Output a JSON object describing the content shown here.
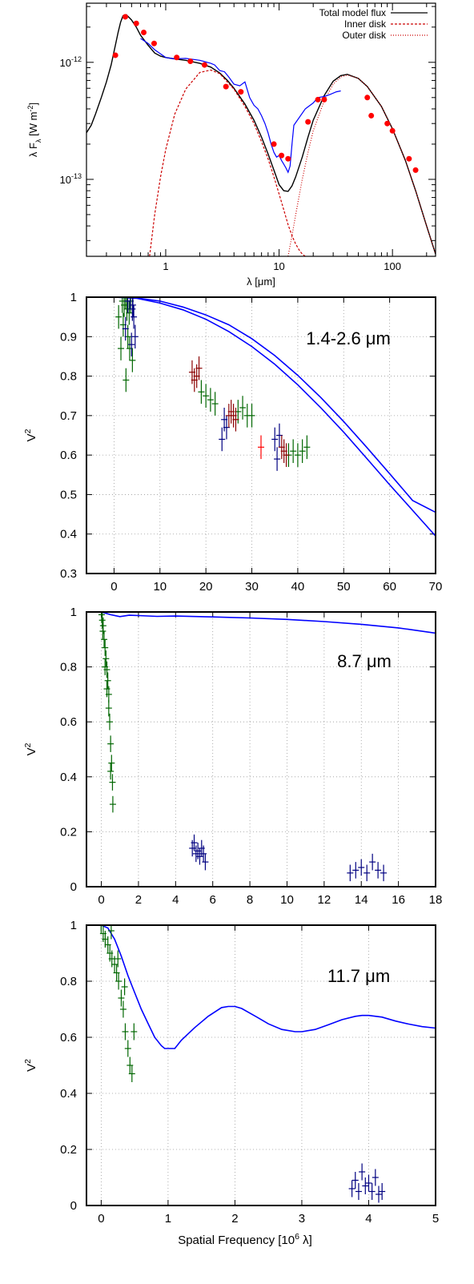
{
  "chart_data": [
    {
      "type": "line",
      "panel": "sed",
      "xlabel": "λ [μm]",
      "ylabel": "λ F_λ [W m^-2]",
      "xscale": "log",
      "yscale": "log",
      "xlim": [
        0.2,
        240
      ],
      "ylim": [
        2.2e-14,
        3.2e-12
      ],
      "x_tick_labels": [
        "1",
        "10",
        "100"
      ],
      "x_tick_values": [
        1,
        10,
        100
      ],
      "y_tick_labels": [
        "10^-12",
        "10^-13"
      ],
      "y_tick_values": [
        1e-12,
        1e-13
      ],
      "grid": false,
      "legend_position": "top-right",
      "series": [
        {
          "name": "Total model flux",
          "style": "solid",
          "color": "#000000",
          "x": [
            0.2,
            0.22,
            0.24,
            0.27,
            0.3,
            0.33,
            0.36,
            0.38,
            0.4,
            0.42,
            0.45,
            0.5,
            0.55,
            0.6,
            0.7,
            0.8,
            0.9,
            1.0,
            1.2,
            1.5,
            2.0,
            2.5,
            3.0,
            3.5,
            4.0,
            5.0,
            6.0,
            7.0,
            8.0,
            9.0,
            10.0,
            11.0,
            12.0,
            13.0,
            14.0,
            16.0,
            18.0,
            20.0,
            25.0,
            30.0,
            35.0,
            40.0,
            50.0,
            60.0,
            80.0,
            100.0,
            130.0,
            160.0,
            200.0,
            240.0
          ],
          "y": [
            2.5e-13,
            2.9e-13,
            3.6e-13,
            5e-13,
            6.8e-13,
            9.5e-13,
            1.4e-12,
            1.8e-12,
            2.2e-12,
            2.5e-12,
            2.55e-12,
            2.3e-12,
            2e-12,
            1.7e-12,
            1.4e-12,
            1.2e-12,
            1.13e-12,
            1.1e-12,
            1.07e-12,
            1.04e-12,
            9.8e-13,
            9.1e-13,
            8.1e-13,
            7e-13,
            6e-13,
            4.4e-13,
            3.2e-13,
            2.3e-13,
            1.65e-13,
            1.2e-13,
            9e-14,
            8e-14,
            7.9e-14,
            8.8e-14,
            1.05e-13,
            1.55e-13,
            2.3e-13,
            3.2e-13,
            5.2e-13,
            6.9e-13,
            7.7e-13,
            7.9e-13,
            7.3e-13,
            6.2e-13,
            4.2e-13,
            2.7e-13,
            1.45e-13,
            8e-14,
            4e-14,
            2.3e-14
          ]
        },
        {
          "name": "Inner disk",
          "style": "dashed",
          "color": "#cc0000",
          "x": [
            0.72,
            0.8,
            0.9,
            1.0,
            1.2,
            1.5,
            2.0,
            2.5,
            3.0,
            4.0,
            5.0,
            6.0,
            7.0,
            8.0,
            9.0,
            10.0,
            11.0,
            12.0,
            13.0,
            14.0,
            15.0,
            16.0,
            17.0
          ],
          "y": [
            2.2e-14,
            5e-14,
            1.05e-13,
            1.8e-13,
            3.6e-13,
            5.9e-13,
            8.2e-13,
            8.6e-13,
            8e-13,
            5.9e-13,
            4.2e-13,
            3e-13,
            2.1e-13,
            1.5e-13,
            1.05e-13,
            7.5e-14,
            5.5e-14,
            4.1e-14,
            3.3e-14,
            2.8e-14,
            2.5e-14,
            2.3e-14,
            2.2e-14
          ]
        },
        {
          "name": "Outer disk",
          "style": "dotted",
          "color": "#cc0000",
          "x": [
            12.0,
            13.0,
            14.0,
            16.0,
            18.0,
            20.0,
            25.0,
            30.0,
            35.0,
            40.0,
            50.0,
            60.0,
            80.0,
            100.0,
            130.0,
            160.0,
            200.0,
            240.0
          ],
          "y": [
            2.2e-14,
            3.3e-14,
            5e-14,
            1e-13,
            1.7e-13,
            2.6e-13,
            4.7e-13,
            6.5e-13,
            7.5e-13,
            7.8e-13,
            7.3e-13,
            6.2e-13,
            4.2e-13,
            2.7e-13,
            1.45e-13,
            8e-14,
            4e-14,
            2.3e-14
          ]
        },
        {
          "name": "",
          "style": "solid",
          "color": "#0000ff",
          "x": [
            0.6,
            0.7,
            0.8,
            0.9,
            1.0,
            1.2,
            1.5,
            2.0,
            2.5,
            2.7,
            3.0,
            3.3,
            3.6,
            4.0,
            4.5,
            5.0,
            5.5,
            6.0,
            6.5,
            7.0,
            7.5,
            8.0,
            8.5,
            9.0,
            9.5,
            10.0,
            10.5,
            11.0,
            11.5,
            12.0,
            12.5,
            13.0,
            13.5,
            17.0,
            20.0,
            22.0,
            25.0,
            28.0,
            32.0,
            35.0
          ],
          "y": [
            1.6e-12,
            1.45e-12,
            1.28e-12,
            1.18e-12,
            1.1e-12,
            1.07e-12,
            1.08e-12,
            1.04e-12,
            9.8e-13,
            9.5e-13,
            8.5e-13,
            8.3e-13,
            7.5e-13,
            6.5e-13,
            6.3e-13,
            6.8e-13,
            5e-13,
            4.3e-13,
            4e-13,
            3.5e-13,
            3e-13,
            2.5e-13,
            2e-13,
            1.7e-13,
            1.55e-13,
            1.6e-13,
            1.45e-13,
            1.35e-13,
            1.25e-13,
            1.15e-13,
            1.3e-13,
            2e-13,
            2.9e-13,
            4e-13,
            4.5e-13,
            5e-13,
            5.1e-13,
            5.3e-13,
            5.6e-13,
            5.7e-13
          ]
        },
        {
          "name": "",
          "type": "scatter",
          "color": "#ff0000",
          "x": [
            0.36,
            0.44,
            0.55,
            0.64,
            0.79,
            1.25,
            1.65,
            2.2,
            3.4,
            4.6,
            9.0,
            10.5,
            12.0,
            18.0,
            22.0,
            25.0,
            60.0,
            65.0,
            90.0,
            100.0,
            140.0,
            160.0
          ],
          "y": [
            1.15e-12,
            2.45e-12,
            2.15e-12,
            1.8e-12,
            1.45e-12,
            1.1e-12,
            1.02e-12,
            9.5e-13,
            6.2e-13,
            5.6e-13,
            2e-13,
            1.6e-13,
            1.5e-13,
            3.1e-13,
            4.8e-13,
            4.8e-13,
            5e-13,
            3.5e-13,
            3e-13,
            2.6e-13,
            1.5e-13,
            1.2e-13
          ]
        }
      ]
    },
    {
      "type": "scatter",
      "panel": "v2-nir",
      "xlabel": "",
      "ylabel": "V^2",
      "annotation": "1.4-2.6 μm",
      "xlim": [
        -6,
        70
      ],
      "ylim": [
        0.3,
        1.0
      ],
      "x_tick_values": [
        0,
        10,
        20,
        30,
        40,
        50,
        60,
        70
      ],
      "x_tick_labels": [
        "0",
        "10",
        "20",
        "30",
        "40",
        "50",
        "60",
        "70"
      ],
      "y_tick_values": [
        0.3,
        0.4,
        0.5,
        0.6,
        0.7,
        0.8,
        0.9,
        1.0
      ],
      "y_tick_labels": [
        "0.3",
        "0.4",
        "0.5",
        "0.6",
        "0.7",
        "0.8",
        "0.9",
        "1"
      ],
      "grid": true,
      "series": [
        {
          "name": "",
          "type": "line",
          "color": "#0000ff",
          "x": [
            0,
            5,
            10,
            15,
            20,
            25,
            30,
            35,
            40,
            45,
            50,
            55,
            60,
            65,
            70
          ],
          "y": [
            1.0,
            0.998,
            0.99,
            0.975,
            0.955,
            0.93,
            0.895,
            0.852,
            0.802,
            0.746,
            0.685,
            0.62,
            0.553,
            0.485,
            0.455
          ]
        },
        {
          "name": "",
          "type": "line",
          "color": "#0000ff",
          "x": [
            0,
            5,
            10,
            15,
            20,
            25,
            30,
            35,
            40,
            45,
            50,
            55,
            60,
            65,
            70
          ],
          "y": [
            1.0,
            0.997,
            0.985,
            0.968,
            0.944,
            0.913,
            0.875,
            0.83,
            0.778,
            0.72,
            0.658,
            0.592,
            0.525,
            0.46,
            0.395
          ]
        },
        {
          "name": "",
          "type": "scatter",
          "color": "#006600",
          "x": [
            1.0,
            1.5,
            2.0,
            2.2,
            2.5,
            2.8,
            3.0,
            3.3,
            3.6,
            4.0,
            1.8,
            2.6,
            3.4,
            19.0,
            20.0,
            21.0,
            22.0,
            27.0,
            28.0,
            29.0,
            30.0,
            38.0,
            39.0,
            40.0,
            41.0,
            42.0
          ],
          "y": [
            0.95,
            0.87,
            0.93,
            0.98,
            1.0,
            0.97,
            0.9,
            0.96,
            0.99,
            0.84,
            0.99,
            0.79,
            0.87,
            0.76,
            0.75,
            0.74,
            0.73,
            0.71,
            0.72,
            0.7,
            0.7,
            0.6,
            0.61,
            0.6,
            0.61,
            0.62
          ]
        },
        {
          "name": "",
          "type": "scatter",
          "color": "#000080",
          "x": [
            2.5,
            3.0,
            3.5,
            4.0,
            4.3,
            4.6,
            3.8,
            4.1,
            23.5,
            24.0,
            24.5,
            35.0,
            35.5,
            36.0
          ],
          "y": [
            0.92,
            0.99,
            1.0,
            0.97,
            0.95,
            0.9,
            0.88,
            0.98,
            0.64,
            0.69,
            0.67,
            0.64,
            0.59,
            0.65
          ]
        },
        {
          "name": "",
          "type": "scatter",
          "color": "#8b0000",
          "x": [
            17.0,
            17.5,
            18.0,
            18.5,
            25.0,
            25.5,
            26.0,
            26.5,
            36.5,
            37.0,
            37.5
          ],
          "y": [
            0.81,
            0.79,
            0.8,
            0.82,
            0.7,
            0.71,
            0.7,
            0.69,
            0.62,
            0.61,
            0.6
          ]
        },
        {
          "name": "",
          "type": "scatter",
          "color": "#ff0000",
          "x": [
            32.0
          ],
          "y": [
            0.62
          ]
        }
      ]
    },
    {
      "type": "scatter",
      "panel": "v2-8.7",
      "xlabel": "",
      "ylabel": "V^2",
      "annotation": "8.7 μm",
      "xlim": [
        -0.8,
        18
      ],
      "ylim": [
        0,
        1.0
      ],
      "x_tick_values": [
        0,
        2,
        4,
        6,
        8,
        10,
        12,
        14,
        16,
        18
      ],
      "x_tick_labels": [
        "0",
        "2",
        "4",
        "6",
        "8",
        "10",
        "12",
        "14",
        "16",
        "18"
      ],
      "y_tick_values": [
        0,
        0.2,
        0.4,
        0.6,
        0.8,
        1.0
      ],
      "y_tick_labels": [
        "0",
        "0.2",
        "0.4",
        "0.6",
        "0.8",
        "1"
      ],
      "grid": true,
      "series": [
        {
          "name": "",
          "type": "line",
          "color": "#0000ff",
          "x": [
            0,
            0.5,
            1,
            1.5,
            2,
            3,
            4,
            6,
            8,
            10,
            12,
            14,
            16,
            18
          ],
          "y": [
            1.0,
            0.99,
            0.983,
            0.988,
            0.987,
            0.984,
            0.985,
            0.982,
            0.978,
            0.973,
            0.965,
            0.955,
            0.942,
            0.923
          ]
        },
        {
          "name": "",
          "type": "scatter",
          "color": "#006600",
          "x": [
            0.02,
            0.05,
            0.08,
            0.1,
            0.15,
            0.2,
            0.25,
            0.3,
            0.35,
            0.4,
            0.45,
            0.5,
            0.55,
            0.6,
            0.62,
            0.2,
            0.3,
            0.4,
            0.5
          ],
          "y": [
            0.99,
            0.97,
            0.93,
            0.95,
            0.9,
            0.87,
            0.83,
            0.79,
            0.75,
            0.7,
            0.6,
            0.52,
            0.45,
            0.38,
            0.3,
            0.8,
            0.72,
            0.65,
            0.42
          ]
        },
        {
          "name": "",
          "type": "scatter",
          "color": "#000080",
          "x": [
            4.9,
            5.0,
            5.1,
            5.2,
            5.3,
            5.4,
            5.5,
            5.6,
            13.4,
            13.7,
            14.0,
            14.3,
            14.6,
            14.9,
            15.2
          ],
          "y": [
            0.14,
            0.16,
            0.12,
            0.13,
            0.11,
            0.14,
            0.12,
            0.09,
            0.05,
            0.06,
            0.07,
            0.05,
            0.09,
            0.06,
            0.05
          ]
        }
      ]
    },
    {
      "type": "scatter",
      "panel": "v2-11.7",
      "xlabel": "Spatial Frequency [10^6 λ]",
      "ylabel": "V^2",
      "annotation": "11.7 μm",
      "xlim": [
        -0.22,
        5
      ],
      "ylim": [
        0,
        1.0
      ],
      "x_tick_values": [
        0,
        1,
        2,
        3,
        4,
        5
      ],
      "x_tick_labels": [
        "0",
        "1",
        "2",
        "3",
        "4",
        "5"
      ],
      "y_tick_values": [
        0,
        0.2,
        0.4,
        0.6,
        0.8,
        1.0
      ],
      "y_tick_labels": [
        "0",
        "0.2",
        "0.4",
        "0.6",
        "0.8",
        "1"
      ],
      "grid": true,
      "series": [
        {
          "name": "",
          "type": "line",
          "color": "#0000ff",
          "x": [
            0,
            0.1,
            0.2,
            0.3,
            0.4,
            0.5,
            0.6,
            0.7,
            0.8,
            0.9,
            0.95,
            1.0,
            1.1,
            1.2,
            1.4,
            1.6,
            1.8,
            1.9,
            2.0,
            2.1,
            2.3,
            2.5,
            2.7,
            2.9,
            3.0,
            3.2,
            3.4,
            3.6,
            3.8,
            3.9,
            4.0,
            4.2,
            4.4,
            4.6,
            4.8,
            5.0
          ],
          "y": [
            1.0,
            0.99,
            0.95,
            0.89,
            0.82,
            0.76,
            0.7,
            0.65,
            0.6,
            0.57,
            0.56,
            0.56,
            0.56,
            0.59,
            0.635,
            0.675,
            0.706,
            0.71,
            0.71,
            0.703,
            0.676,
            0.648,
            0.628,
            0.62,
            0.62,
            0.628,
            0.645,
            0.663,
            0.675,
            0.678,
            0.678,
            0.672,
            0.658,
            0.647,
            0.638,
            0.633
          ]
        },
        {
          "name": "",
          "type": "scatter",
          "color": "#006600",
          "x": [
            0.0,
            0.03,
            0.06,
            0.1,
            0.13,
            0.16,
            0.2,
            0.23,
            0.26,
            0.3,
            0.33,
            0.36,
            0.4,
            0.43,
            0.46,
            0.49,
            0.15,
            0.25,
            0.35
          ],
          "y": [
            1.0,
            0.97,
            0.95,
            0.93,
            0.9,
            0.88,
            0.86,
            0.83,
            0.8,
            0.74,
            0.7,
            0.62,
            0.56,
            0.5,
            0.47,
            0.62,
            0.98,
            0.88,
            0.78
          ]
        },
        {
          "name": "",
          "type": "scatter",
          "color": "#000080",
          "x": [
            3.75,
            3.8,
            3.85,
            3.9,
            3.95,
            4.0,
            4.05,
            4.1,
            4.15,
            4.2
          ],
          "y": [
            0.06,
            0.09,
            0.05,
            0.12,
            0.07,
            0.08,
            0.05,
            0.1,
            0.04,
            0.05
          ]
        }
      ]
    }
  ]
}
